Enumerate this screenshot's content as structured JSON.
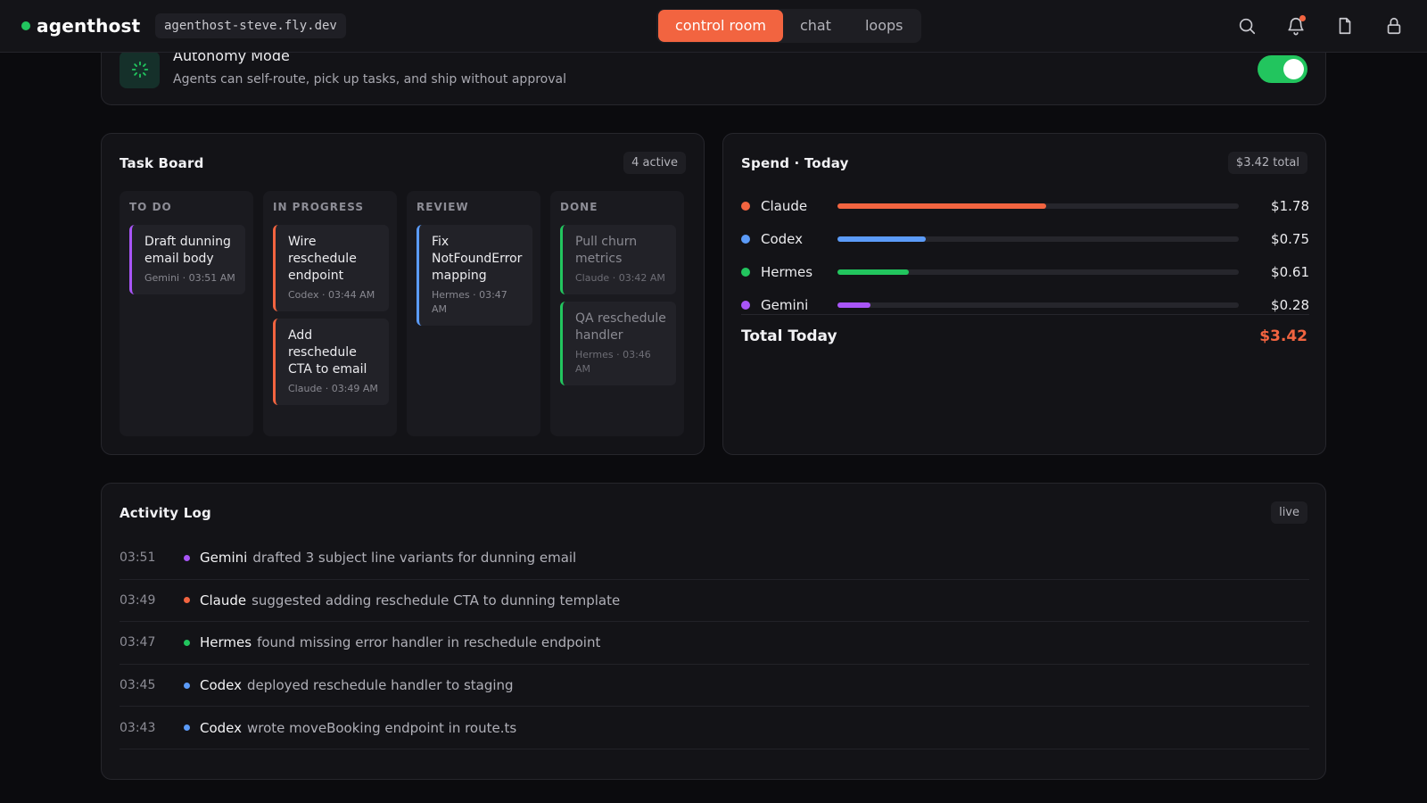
{
  "header": {
    "brand": "agenthost",
    "host": "agenthost-steve.fly.dev",
    "tabs": [
      {
        "label": "control room",
        "active": true
      },
      {
        "label": "chat",
        "active": false
      },
      {
        "label": "loops",
        "active": false
      }
    ],
    "icons": [
      "search-icon",
      "bell-icon",
      "file-icon",
      "lock-icon"
    ],
    "status_color": "#22c55e",
    "accent_color": "#f26440"
  },
  "autonomy": {
    "title": "Autonomy Mode",
    "subtitle": "Agents can self-route, pick up tasks, and ship without approval",
    "enabled": true,
    "icon": "loader-icon"
  },
  "taskboard": {
    "title": "Task Board",
    "badge": "4 active",
    "columns": [
      {
        "header": "TO DO",
        "cards": [
          {
            "title": "Draft dunning email body",
            "meta": "Gemini · 03:51 AM",
            "color": "#a855f7"
          }
        ]
      },
      {
        "header": "IN PROGRESS",
        "cards": [
          {
            "title": "Wire reschedule endpoint",
            "meta": "Codex · 03:44 AM",
            "color": "#f26440"
          },
          {
            "title": "Add reschedule CTA to email",
            "meta": "Claude · 03:49 AM",
            "color": "#f26440"
          }
        ]
      },
      {
        "header": "REVIEW",
        "cards": [
          {
            "title": "Fix NotFoundError mapping",
            "meta": "Hermes · 03:47 AM",
            "color": "#5b9bf8"
          }
        ]
      },
      {
        "header": "DONE",
        "cards": [
          {
            "title": "Pull churn metrics",
            "meta": "Claude · 03:42 AM",
            "color": "#22c55e"
          },
          {
            "title": "QA reschedule handler",
            "meta": "Hermes · 03:46 AM",
            "color": "#22c55e"
          }
        ]
      }
    ]
  },
  "spend": {
    "title": "Spend · Today",
    "badge": "$3.42 total",
    "rows": [
      {
        "name": "Claude",
        "amount": "$1.78",
        "value": 1.78,
        "color": "#f26440"
      },
      {
        "name": "Codex",
        "amount": "$0.75",
        "value": 0.75,
        "color": "#5b9bf8"
      },
      {
        "name": "Hermes",
        "amount": "$0.61",
        "value": 0.61,
        "color": "#22c55e"
      },
      {
        "name": "Gemini",
        "amount": "$0.28",
        "value": 0.28,
        "color": "#a855f7"
      }
    ],
    "bar_max": 3.42,
    "total_label": "Total Today",
    "total_value": "$3.42"
  },
  "activity": {
    "title": "Activity Log",
    "badge": "live",
    "rows": [
      {
        "time": "03:51",
        "agent": "Gemini",
        "text": "drafted 3 subject line variants for dunning email",
        "color": "#a855f7"
      },
      {
        "time": "03:49",
        "agent": "Claude",
        "text": "suggested adding reschedule CTA to dunning template",
        "color": "#f26440"
      },
      {
        "time": "03:47",
        "agent": "Hermes",
        "text": "found missing error handler in reschedule endpoint",
        "color": "#22c55e"
      },
      {
        "time": "03:45",
        "agent": "Codex",
        "text": "deployed reschedule handler to staging",
        "color": "#5b9bf8"
      },
      {
        "time": "03:43",
        "agent": "Codex",
        "text": "wrote moveBooking endpoint in route.ts",
        "color": "#5b9bf8"
      }
    ]
  }
}
